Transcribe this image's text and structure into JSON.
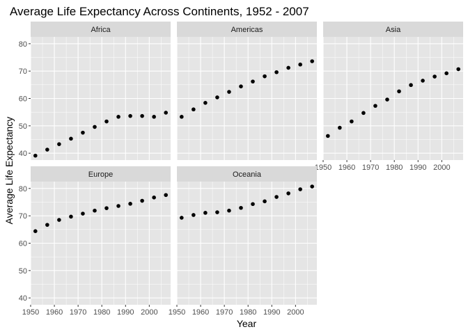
{
  "chart_data": {
    "type": "scatter",
    "title": "Average Life Expectancy Across Continents, 1952 - 2007",
    "xlabel": "Year",
    "ylabel": "Average Life Expectancy",
    "xlim": [
      1950,
      2009
    ],
    "ylim": [
      37.5,
      82.5
    ],
    "x_ticks": [
      1950,
      1960,
      1970,
      1980,
      1990,
      2000
    ],
    "y_ticks": [
      40,
      50,
      60,
      70,
      80
    ],
    "grid": true,
    "facets": "wrap 3 columns, free x labels per bottom row",
    "colors": {
      "panel_bg": "#e5e5e5",
      "strip_bg": "#d9d9d9",
      "grid": "#ffffff",
      "point": "#000000"
    },
    "x": [
      1952,
      1957,
      1962,
      1967,
      1972,
      1977,
      1982,
      1987,
      1992,
      1997,
      2002,
      2007
    ],
    "series": [
      {
        "name": "Africa",
        "values": [
          39.1,
          41.3,
          43.3,
          45.3,
          47.5,
          49.6,
          51.6,
          53.3,
          53.6,
          53.6,
          53.3,
          54.8
        ]
      },
      {
        "name": "Americas",
        "values": [
          53.3,
          56.0,
          58.4,
          60.4,
          62.4,
          64.4,
          66.2,
          68.1,
          69.6,
          71.2,
          72.4,
          73.6
        ]
      },
      {
        "name": "Asia",
        "values": [
          46.3,
          49.3,
          51.6,
          54.7,
          57.3,
          59.6,
          62.6,
          64.9,
          66.5,
          68.0,
          69.2,
          70.7
        ]
      },
      {
        "name": "Europe",
        "values": [
          64.4,
          66.7,
          68.5,
          69.7,
          70.8,
          71.9,
          72.8,
          73.6,
          74.4,
          75.5,
          76.7,
          77.6
        ]
      },
      {
        "name": "Oceania",
        "values": [
          69.3,
          70.3,
          71.1,
          71.3,
          71.9,
          72.9,
          74.3,
          75.3,
          76.9,
          78.2,
          79.7,
          80.7
        ]
      }
    ]
  }
}
